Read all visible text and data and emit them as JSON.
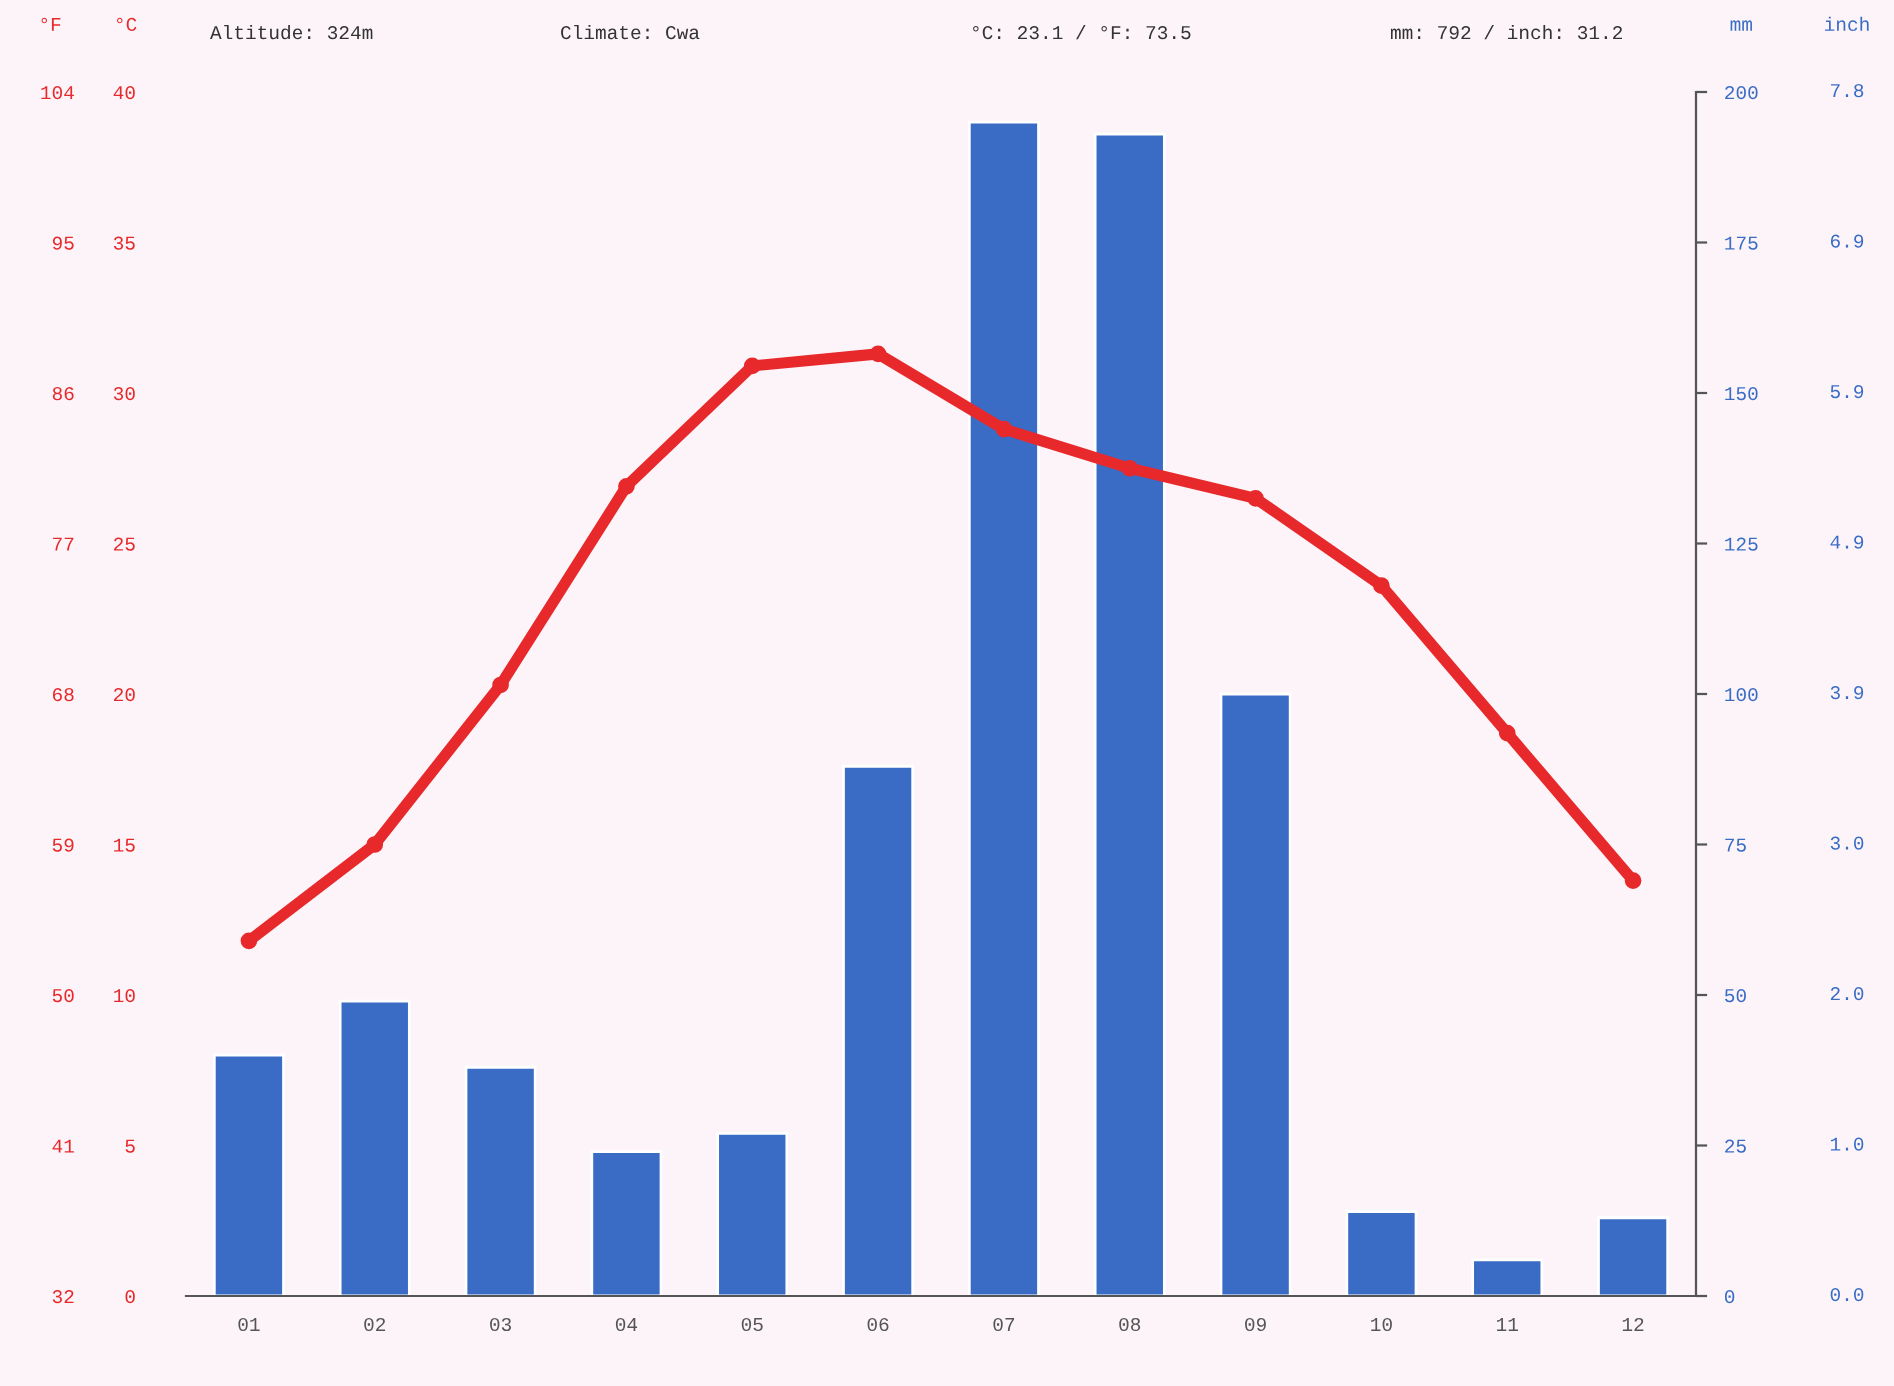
{
  "chart_data": {
    "type": "bar",
    "categories": [
      "01",
      "02",
      "03",
      "04",
      "05",
      "06",
      "07",
      "08",
      "09",
      "10",
      "11",
      "12"
    ],
    "series": [
      {
        "axis": "y2",
        "color": "#3a6cc6",
        "values": [
          40,
          49,
          38,
          24,
          27,
          88,
          195,
          193,
          100,
          14,
          6,
          13
        ]
      },
      {
        "type": "line",
        "axis": "y",
        "color": "#e8292b",
        "marker": "circle",
        "values": [
          11.8,
          15.0,
          20.3,
          26.9,
          30.9,
          31.3,
          28.8,
          27.5,
          26.5,
          23.6,
          18.7,
          13.8
        ]
      }
    ],
    "ylabel": "°C",
    "ylim": [
      0,
      40
    ],
    "yticks": [
      0,
      5,
      10,
      15,
      20,
      25,
      30,
      35,
      40
    ],
    "y3label": "°F",
    "y3lim": [
      32,
      104
    ],
    "y3ticks": [
      32,
      41,
      50,
      59,
      68,
      77,
      86,
      95,
      104
    ],
    "y2label": "mm",
    "y2lim": [
      0,
      200
    ],
    "y2ticks": [
      0,
      25,
      50,
      75,
      100,
      125,
      150,
      175,
      200
    ],
    "annotations": [
      "Altitude: 324m",
      "Climate: Cwa",
      "°C: 23.1 / °F: 73.5",
      "mm: 792 / inch: 31.2",
      "inch",
      "0.0",
      "1.0",
      "2.0",
      "3.0",
      "3.9",
      "4.9",
      "5.9",
      "6.9",
      "7.8"
    ],
    "grid": false,
    "legend": false
  }
}
